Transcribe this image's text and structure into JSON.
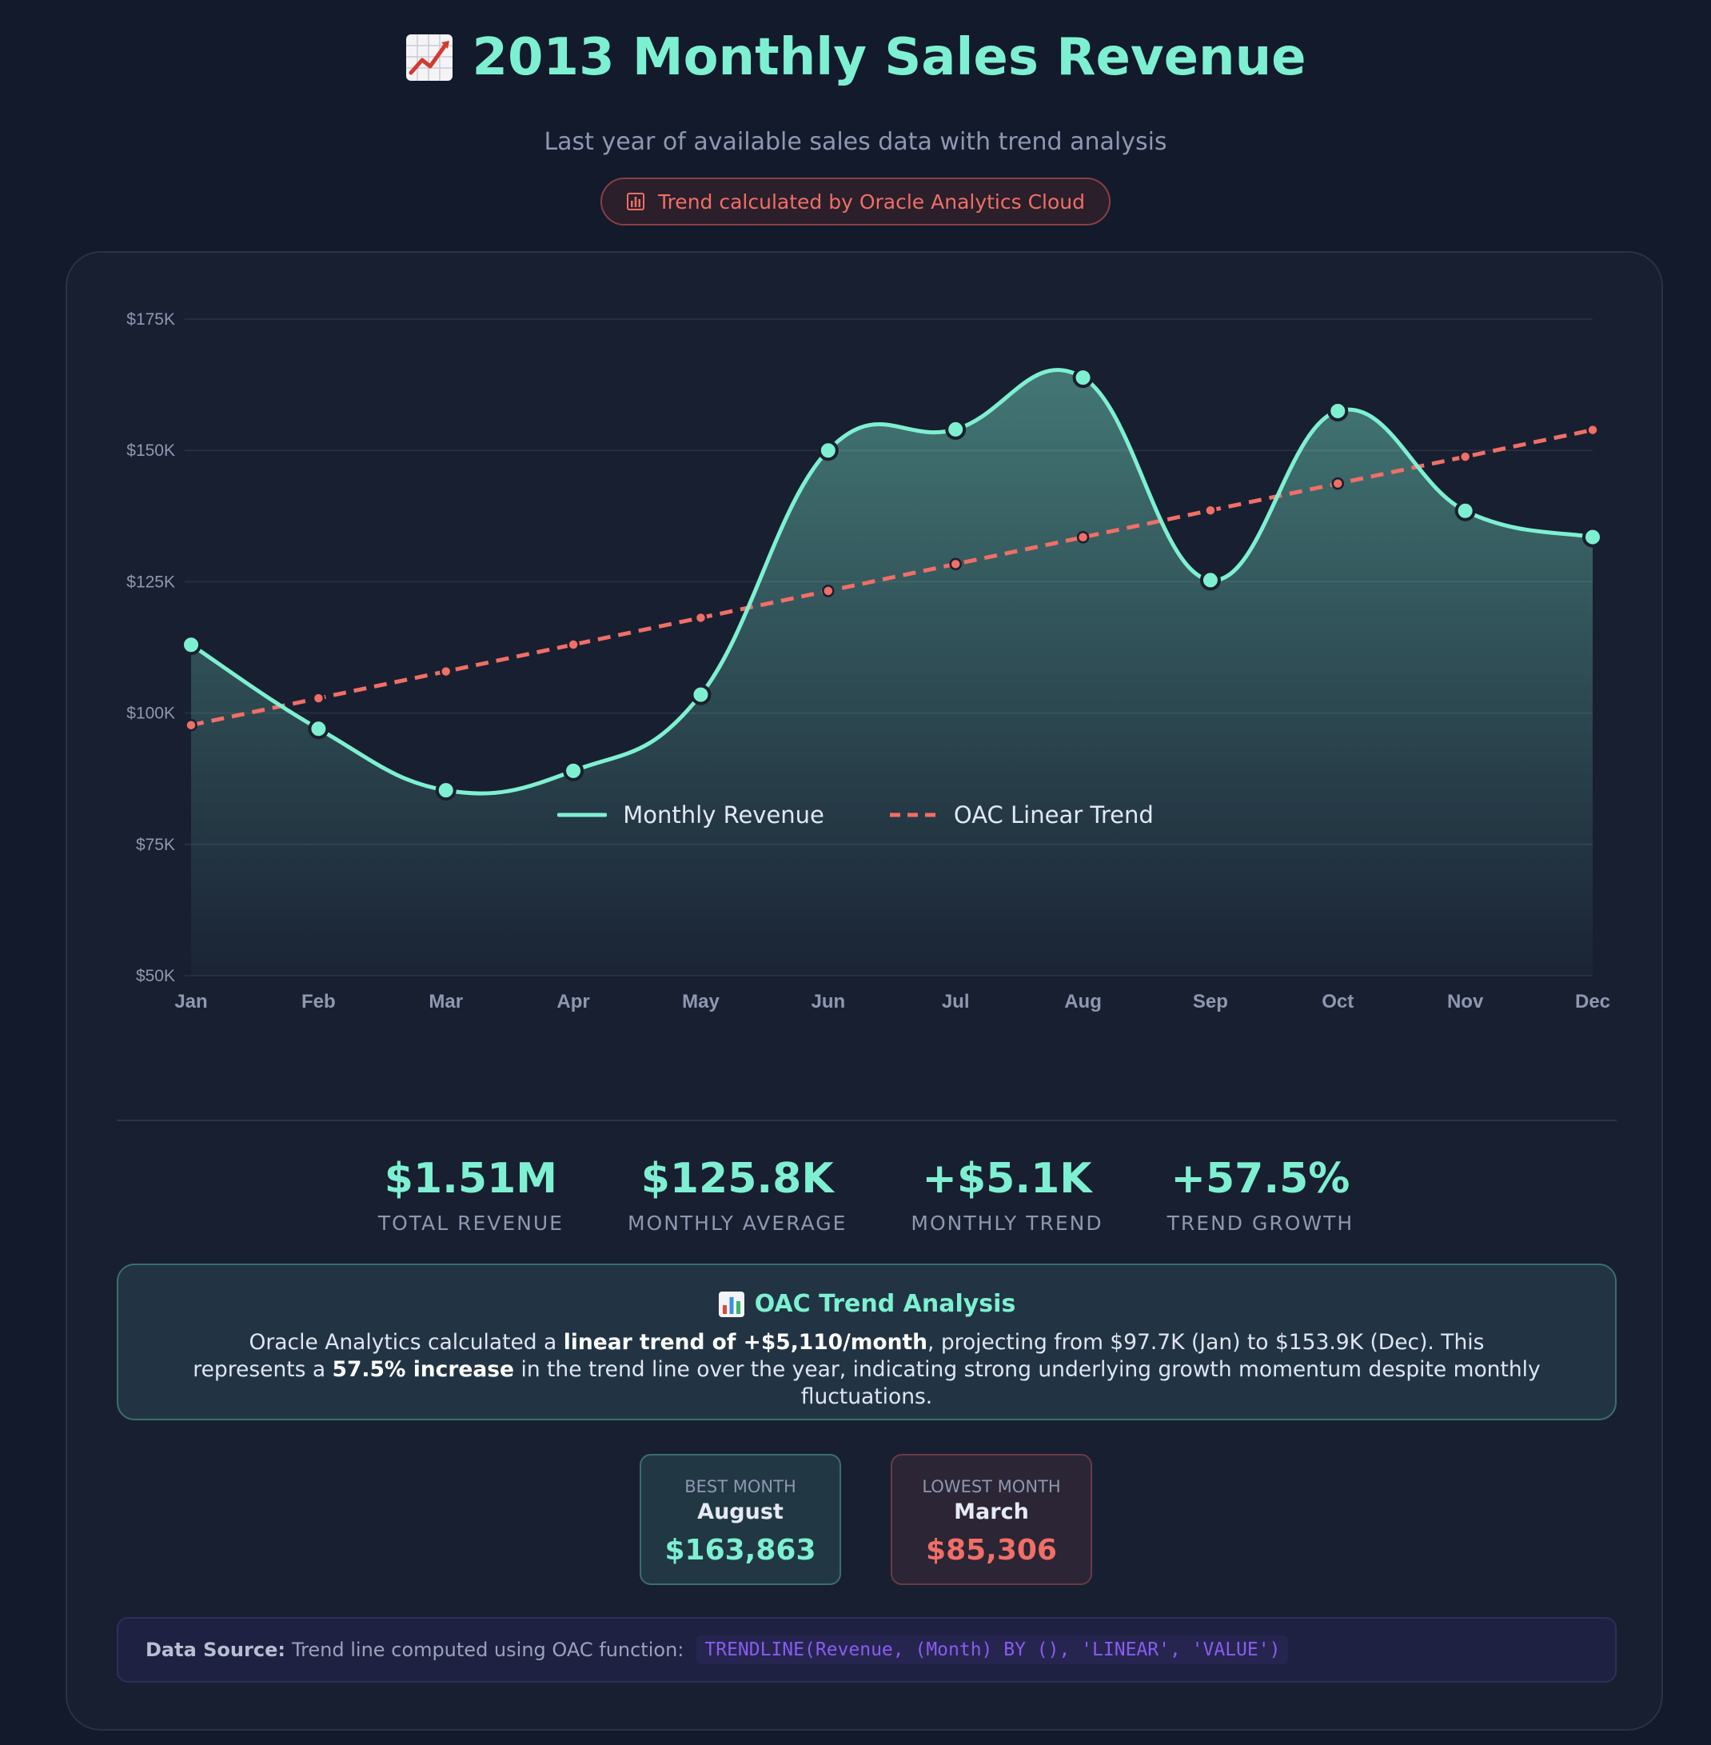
{
  "header": {
    "title": "2013 Monthly Sales Revenue",
    "title_icon": "chart-increasing-icon",
    "subtitle": "Last year of available sales data with trend analysis",
    "badge_text": "Trend calculated by Oracle Analytics Cloud",
    "badge_icon": "bar-chart-icon"
  },
  "colors": {
    "revenue": "#7ef0d2",
    "trend": "#f06f66",
    "grid": "#2a3245",
    "tick": "#8e98b0"
  },
  "chart_data": {
    "type": "line",
    "title": "2013 Monthly Sales Revenue",
    "categories": [
      "Jan",
      "Feb",
      "Mar",
      "Apr",
      "May",
      "Jun",
      "Jul",
      "Aug",
      "Sep",
      "Oct",
      "Nov",
      "Dec"
    ],
    "series": [
      {
        "name": "Monthly Revenue",
        "style": "solid-smooth-area",
        "values": [
          113000,
          97000,
          85306,
          89000,
          103500,
          150000,
          154000,
          163863,
          125300,
          157500,
          138500,
          133500
        ]
      },
      {
        "name": "OAC Linear Trend",
        "style": "dashed",
        "values": [
          97700,
          102810,
          107920,
          113030,
          118140,
          123250,
          128360,
          133470,
          138580,
          143690,
          148800,
          153900
        ]
      }
    ],
    "y_ticks": [
      50000,
      75000,
      100000,
      125000,
      150000,
      175000
    ],
    "y_tick_labels": [
      "$50K",
      "$75K",
      "$100K",
      "$125K",
      "$150K",
      "$175K"
    ],
    "ylim": [
      50000,
      175000
    ],
    "xlabel": "",
    "ylabel": "",
    "grid": true,
    "legend": "bottom-center"
  },
  "stats": [
    {
      "value": "$1.51M",
      "label": "TOTAL REVENUE"
    },
    {
      "value": "$125.8K",
      "label": "MONTHLY AVERAGE"
    },
    {
      "value": "+$5.1K",
      "label": "MONTHLY TREND"
    },
    {
      "value": "+57.5%",
      "label": "TREND GROWTH"
    }
  ],
  "analysis": {
    "title": "OAC Trend Analysis",
    "icon": "bar-chart-icon",
    "text_1": "Oracle Analytics calculated a ",
    "bold_1": "linear trend of +$5,110/month",
    "text_2": ", projecting from $97.7K (Jan) to $153.9K (Dec). This represents a ",
    "bold_2": "57.5% increase",
    "text_3": " in the trend line over the year, indicating strong underlying growth momentum despite monthly fluctuations."
  },
  "best": {
    "label": "BEST MONTH",
    "month": "August",
    "value": "$163,863"
  },
  "worst": {
    "label": "LOWEST MONTH",
    "month": "March",
    "value": "$85,306"
  },
  "source": {
    "label": "Data Source:",
    "text": "Trend line computed using OAC function:",
    "code": "TRENDLINE(Revenue, (Month) BY (), 'LINEAR', 'VALUE')"
  }
}
